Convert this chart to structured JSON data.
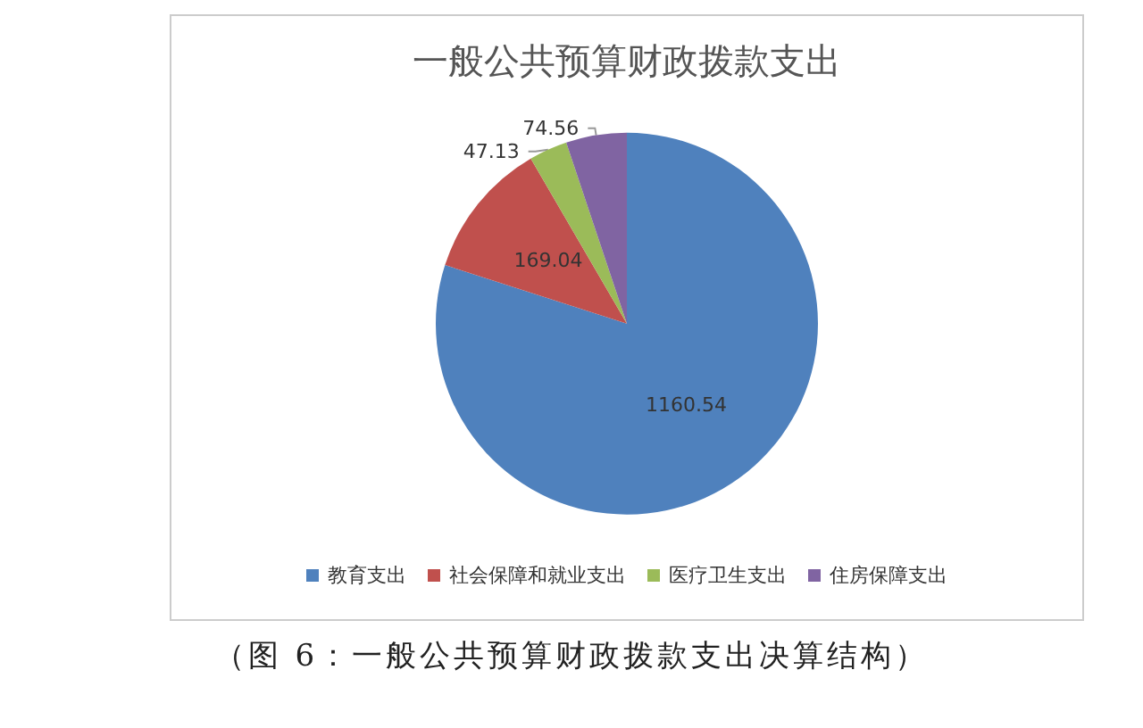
{
  "chart_data": {
    "type": "pie",
    "title": "一般公共预算财政拨款支出",
    "categories": [
      "教育支出",
      "社会保障和就业支出",
      "医疗卫生支出",
      "住房保障支出"
    ],
    "values": [
      1160.54,
      169.04,
      47.13,
      74.56
    ],
    "colors": [
      "#4f81bd",
      "#c0504d",
      "#9bbb59",
      "#8064a2"
    ],
    "data_labels": true,
    "legend": "bottom",
    "annotations": [
      "（图 6：一般公共预算财政拨款支出决算结构）"
    ]
  }
}
